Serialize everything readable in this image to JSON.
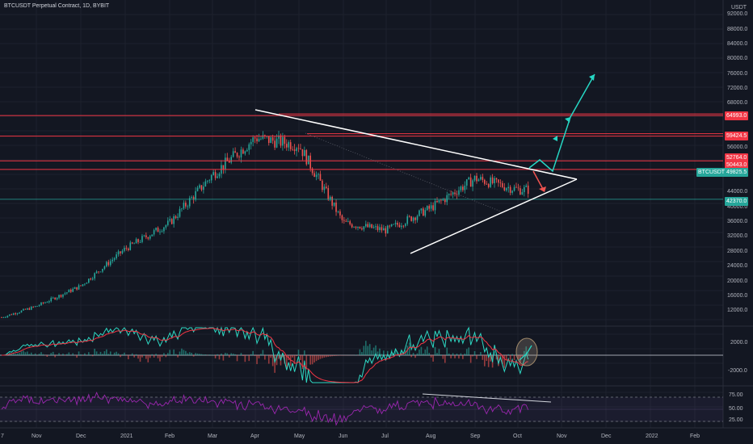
{
  "title": "BTCUSDT Perpetual Contract, 1D, BYBIT",
  "price_axis": {
    "unit": "USDT",
    "ticks": [
      "92000.0",
      "88000.0",
      "84000.0",
      "80000.0",
      "76000.0",
      "72000.0",
      "68000.0",
      "56000.0",
      "44000.0",
      "40000.0",
      "36000.0",
      "32000.0",
      "28000.0",
      "24000.0",
      "20000.0",
      "16000.0",
      "12000.0"
    ]
  },
  "macd_axis": {
    "ticks": [
      "2000.0",
      "-2000.0"
    ]
  },
  "rsi_axis": {
    "ticks": [
      "75.00",
      "50.00",
      "25.00"
    ]
  },
  "time_axis": {
    "labels": [
      "7",
      "Nov",
      "Dec",
      "2021",
      "Feb",
      "Mar",
      "Apr",
      "May",
      "Jun",
      "Jul",
      "Aug",
      "Sep",
      "Oct",
      "Nov",
      "Dec",
      "2022",
      "Feb"
    ]
  },
  "price_tags": [
    {
      "value": "64993.0",
      "color": "#f23645"
    },
    {
      "value": "59424.5",
      "color": "#f23645"
    },
    {
      "value": "52764.0",
      "color": "#f23645"
    },
    {
      "value": "50443.0",
      "color": "#f23645"
    },
    {
      "symbol": "BTCUSDT",
      "value": "49825.5",
      "color": "#26a69a"
    },
    {
      "value": "42370.0",
      "color": "#26a69a"
    }
  ],
  "colors": {
    "up": "#26a69a",
    "down": "#ef5350",
    "resistance": "#f23645",
    "support": "#26a69a",
    "bg": "#131722"
  },
  "chart_data": {
    "type": "candlestick",
    "symbol": "BTCUSDT",
    "interval": "1D",
    "exchange": "BYBIT",
    "price_range": [
      9000,
      94000
    ],
    "monthly_close_path": [
      {
        "month": "Nov 2020",
        "price": 13500
      },
      {
        "month": "Dec 2020",
        "price": 19000
      },
      {
        "month": "2021",
        "price": 29000
      },
      {
        "month": "Feb 2021",
        "price": 36000
      },
      {
        "month": "Mar 2021",
        "price": 49000
      },
      {
        "month": "Apr 2021",
        "price": 59000
      },
      {
        "month": "May 2021",
        "price": 57000
      },
      {
        "month": "Jun 2021",
        "price": 36000
      },
      {
        "month": "Jul 2021",
        "price": 34000
      },
      {
        "month": "Aug 2021",
        "price": 40000
      },
      {
        "month": "Sep 2021",
        "price": 48000
      },
      {
        "month": "Oct 2021",
        "price": 45000
      }
    ],
    "levels": {
      "resistance": [
        64993.0,
        59424.5,
        52764.0,
        50443.0
      ],
      "support": [
        42370.0
      ],
      "last": 49825.5
    },
    "indicators": [
      "MACD",
      "RSI"
    ],
    "rsi_levels": [
      70,
      30
    ]
  }
}
